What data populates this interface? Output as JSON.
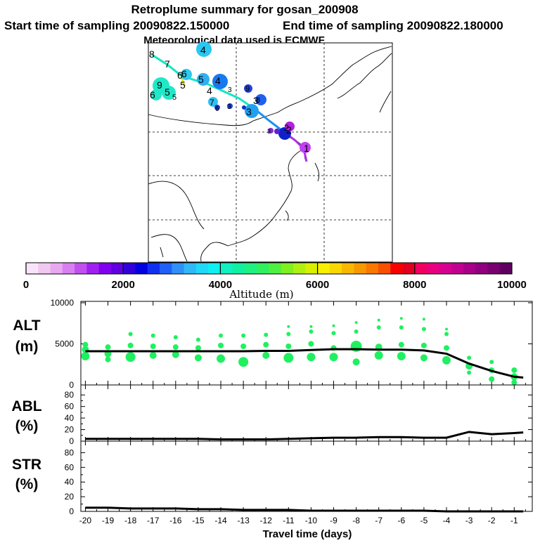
{
  "header": {
    "title": "Retroplume summary for gosan_200908",
    "start_label": "Start time of sampling 20090822.150000",
    "end_label": "End time of sampling 20090822.180000",
    "met_label": "Meteorological data used is ECMWF"
  },
  "colorbar": {
    "label": "Altitude (m)",
    "ticks": [
      "0",
      "2000",
      "4000",
      "6000",
      "8000",
      "10000"
    ],
    "tick_values": [
      0,
      2000,
      4000,
      6000,
      8000,
      10000
    ],
    "colors": [
      "#f8e4f8",
      "#f0c8f0",
      "#e8a8f0",
      "#d880f0",
      "#c050f0",
      "#a020f0",
      "#8000f0",
      "#6000e0",
      "#3000d8",
      "#0000e0",
      "#1030f0",
      "#2060f8",
      "#3090f8",
      "#30b8f8",
      "#20d8f8",
      "#10f0f0",
      "#10f0c0",
      "#10f0a0",
      "#20f080",
      "#30f060",
      "#50f040",
      "#80f020",
      "#b0f010",
      "#d8f000",
      "#f8f000",
      "#f8d800",
      "#f8b800",
      "#f89800",
      "#f87800",
      "#f85000",
      "#f80000",
      "#e00020",
      "#f00060",
      "#e80080",
      "#d80090",
      "#c00090",
      "#a80088",
      "#900080",
      "#780070",
      "#600060"
    ]
  },
  "map": {
    "path_labels": [
      "1",
      "2",
      "3",
      "3",
      "4",
      "5",
      "6",
      "7",
      "8"
    ],
    "cluster_labels": [
      "9",
      "5",
      "5",
      "6",
      "6",
      "6",
      "4",
      "7",
      "5",
      "4",
      "3",
      "3",
      "2",
      "3",
      "9",
      "6",
      "3",
      "4",
      "7",
      "6"
    ]
  },
  "chart_data": [
    {
      "type": "line",
      "panel": "ALT",
      "ylabel": "ALT (m)",
      "ylabel_lines": [
        "ALT",
        "(m)"
      ],
      "ylim": [
        0,
        10000
      ],
      "yticks": [
        "10000",
        "5000",
        "0"
      ],
      "ytick_values": [
        10000,
        5000,
        0
      ],
      "x": [
        -20,
        -19,
        -18,
        -17,
        -16,
        -15,
        -14,
        -13,
        -12,
        -11,
        -10,
        -9,
        -8,
        -7,
        -6,
        -5,
        -4,
        -3,
        -2,
        -1,
        -0.6
      ],
      "values": [
        4100,
        4100,
        4100,
        4100,
        4100,
        4100,
        4100,
        4100,
        4150,
        4150,
        4250,
        4350,
        4350,
        4300,
        4300,
        4200,
        3800,
        2600,
        1700,
        1000,
        900
      ],
      "scatter_color": "#20f060",
      "scatter": [
        [
          -20,
          4900,
          4
        ],
        [
          -20,
          4300,
          5
        ],
        [
          -20,
          3500,
          6
        ],
        [
          -19,
          4600,
          4
        ],
        [
          -19,
          3800,
          5
        ],
        [
          -19,
          3100,
          4
        ],
        [
          -18,
          6200,
          3
        ],
        [
          -18,
          4800,
          4
        ],
        [
          -18,
          3400,
          7
        ],
        [
          -17,
          6000,
          3
        ],
        [
          -17,
          4700,
          4
        ],
        [
          -17,
          3600,
          5
        ],
        [
          -16,
          5800,
          3
        ],
        [
          -16,
          4600,
          4
        ],
        [
          -16,
          3700,
          5
        ],
        [
          -15,
          5500,
          3
        ],
        [
          -15,
          4500,
          4
        ],
        [
          -15,
          3300,
          5
        ],
        [
          -14,
          6000,
          3
        ],
        [
          -14,
          4800,
          4
        ],
        [
          -14,
          3200,
          6
        ],
        [
          -13,
          6000,
          3
        ],
        [
          -13,
          4700,
          4
        ],
        [
          -13,
          2800,
          7
        ],
        [
          -12,
          6100,
          3
        ],
        [
          -12,
          4900,
          4
        ],
        [
          -12,
          3600,
          5
        ],
        [
          -11,
          7100,
          2
        ],
        [
          -11,
          6200,
          3
        ],
        [
          -11,
          4700,
          4
        ],
        [
          -11,
          3300,
          7
        ],
        [
          -10,
          7100,
          2
        ],
        [
          -10,
          6500,
          3
        ],
        [
          -10,
          5000,
          4
        ],
        [
          -10,
          3400,
          6
        ],
        [
          -9,
          7200,
          2
        ],
        [
          -9,
          6300,
          3
        ],
        [
          -9,
          4500,
          4
        ],
        [
          -9,
          3400,
          6
        ],
        [
          -8,
          7600,
          2
        ],
        [
          -8,
          6500,
          3
        ],
        [
          -8,
          4700,
          8
        ],
        [
          -8,
          2800,
          5
        ],
        [
          -7,
          7900,
          2
        ],
        [
          -7,
          7000,
          3
        ],
        [
          -7,
          4600,
          5
        ],
        [
          -7,
          3600,
          6
        ],
        [
          -6,
          8100,
          2
        ],
        [
          -6,
          7000,
          3
        ],
        [
          -6,
          4900,
          4
        ],
        [
          -6,
          3500,
          6
        ],
        [
          -5,
          8000,
          2
        ],
        [
          -5,
          6800,
          3
        ],
        [
          -5,
          4800,
          4
        ],
        [
          -5,
          3300,
          5
        ],
        [
          -4,
          6800,
          2
        ],
        [
          -4,
          6200,
          3
        ],
        [
          -4,
          4500,
          4
        ],
        [
          -4,
          3000,
          6
        ],
        [
          -3,
          3300,
          3
        ],
        [
          -3,
          2300,
          5
        ],
        [
          -3,
          1500,
          3
        ],
        [
          -2,
          2800,
          3
        ],
        [
          -2,
          1800,
          4
        ],
        [
          -2,
          700,
          4
        ],
        [
          -1,
          1800,
          4
        ],
        [
          -1,
          1000,
          5
        ],
        [
          -1,
          300,
          4
        ]
      ]
    },
    {
      "type": "line",
      "panel": "ABL",
      "ylabel": "ABL (%)",
      "ylabel_lines": [
        "ABL",
        "(%)"
      ],
      "ylim": [
        0,
        90
      ],
      "yticks": [
        "80",
        "60",
        "40",
        "20",
        "0"
      ],
      "ytick_values": [
        80,
        60,
        40,
        20,
        0
      ],
      "x": [
        -20,
        -19,
        -18,
        -17,
        -16,
        -15,
        -14,
        -13,
        -12,
        -11,
        -10,
        -9,
        -8,
        -7,
        -6,
        -5,
        -4,
        -3,
        -2,
        -1,
        -0.6
      ],
      "values": [
        4,
        4,
        4,
        4,
        4,
        4,
        3,
        3,
        3,
        4,
        5,
        6,
        6,
        7,
        7,
        6,
        6,
        16,
        12,
        14,
        15
      ]
    },
    {
      "type": "line",
      "panel": "STR",
      "ylabel": "STR (%)",
      "ylabel_lines": [
        "STR",
        "(%)"
      ],
      "ylim": [
        0,
        90
      ],
      "yticks": [
        "80",
        "60",
        "40",
        "20",
        "0"
      ],
      "ytick_values": [
        80,
        60,
        40,
        20,
        0
      ],
      "x": [
        -20,
        -19,
        -18,
        -17,
        -16,
        -15,
        -14,
        -13,
        -12,
        -11,
        -10,
        -9,
        -8,
        -7,
        -6,
        -5,
        -4,
        -3,
        -2,
        -1,
        -0.6
      ],
      "values": [
        5,
        5,
        4,
        4,
        4,
        3,
        3,
        2,
        2,
        2,
        1,
        1,
        1,
        1,
        1,
        1,
        0,
        0,
        0,
        0,
        0
      ]
    }
  ],
  "xaxis": {
    "label": "Travel time (days)",
    "ticks": [
      "-20",
      "-19",
      "-18",
      "-17",
      "-16",
      "-15",
      "-14",
      "-13",
      "-12",
      "-11",
      "-10",
      "-9",
      "-8",
      "-7",
      "-6",
      "-5",
      "-4",
      "-3",
      "-2",
      "-1"
    ],
    "tick_values": [
      -20,
      -19,
      -18,
      -17,
      -16,
      -15,
      -14,
      -13,
      -12,
      -11,
      -10,
      -9,
      -8,
      -7,
      -6,
      -5,
      -4,
      -3,
      -2,
      -1
    ],
    "range": [
      -20.2,
      -0.2
    ]
  }
}
